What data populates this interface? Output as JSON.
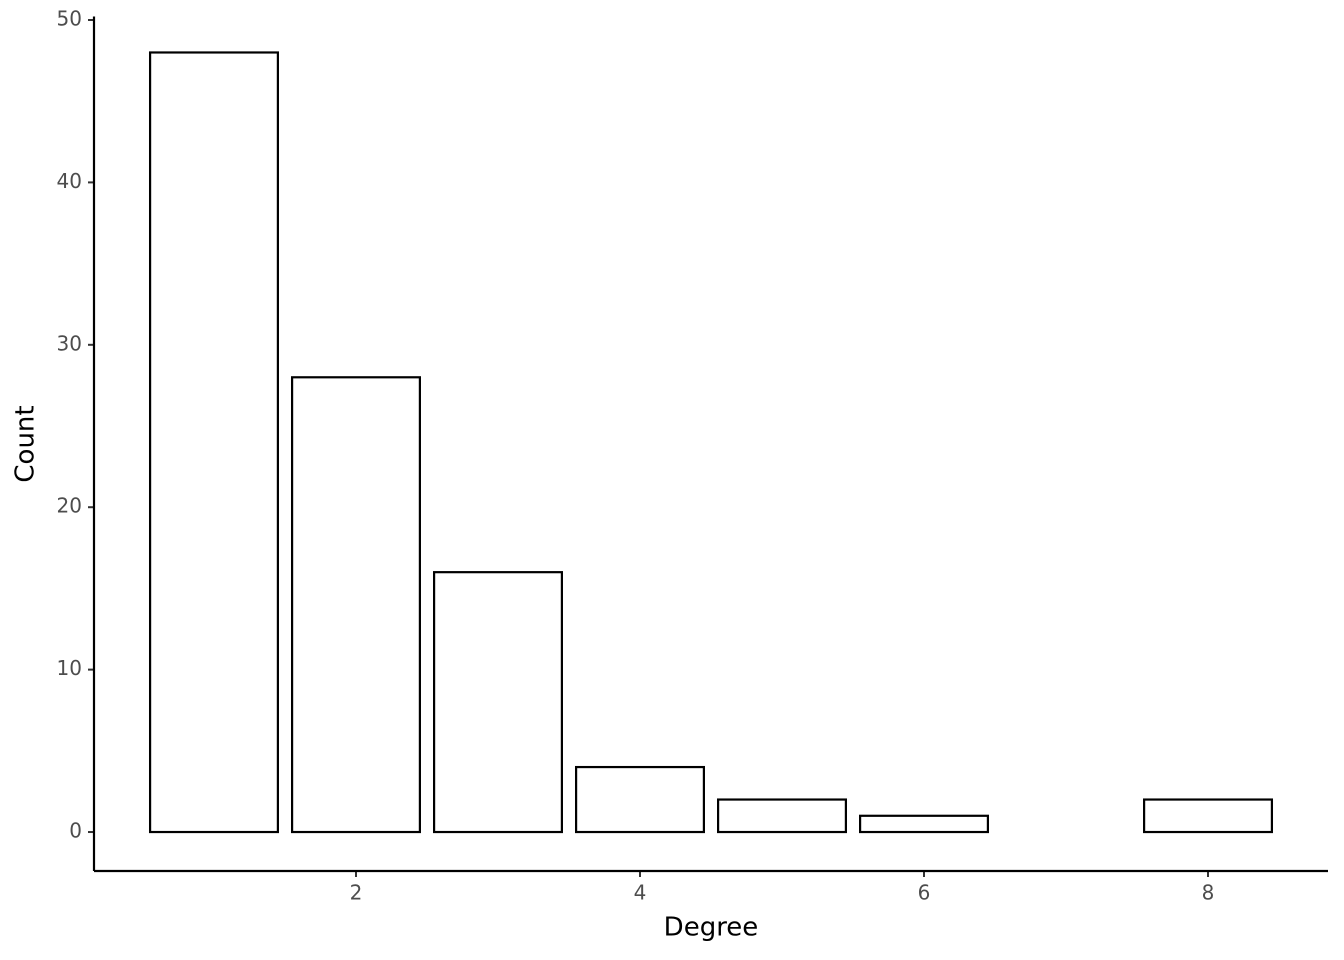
{
  "chart_data": {
    "type": "bar",
    "x_label": "Degree",
    "y_label": "Count",
    "x": [
      1,
      2,
      3,
      4,
      5,
      6,
      8
    ],
    "values": [
      48,
      28,
      16,
      4,
      2,
      1,
      2
    ],
    "color": "#ffffff",
    "edge_color": "#000000",
    "xlim": [
      0.155,
      8.845
    ],
    "xticks": [
      2,
      4,
      6,
      8
    ],
    "ylim": [
      -2.4,
      50.4
    ],
    "yticks": [
      0,
      10,
      20,
      30,
      40,
      50
    ],
    "grid": false
  }
}
